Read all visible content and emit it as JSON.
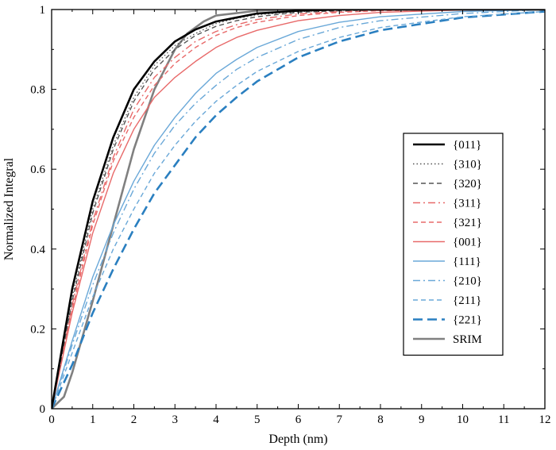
{
  "chart_data": {
    "type": "line",
    "title": "",
    "xlabel": "Depth (nm)",
    "ylabel": "Normalized Integral",
    "xlim": [
      0,
      12
    ],
    "ylim": [
      0,
      1
    ],
    "xticks": [
      "0",
      "1",
      "2",
      "3",
      "4",
      "5",
      "6",
      "7",
      "8",
      "9",
      "10",
      "11",
      "12"
    ],
    "yticks": [
      "0",
      "0.2",
      "0.4",
      "0.6",
      "0.8",
      "1"
    ],
    "grid": false,
    "legend_position": "right",
    "series": [
      {
        "name": "{011}",
        "color": "#000000",
        "dash": "solid",
        "width": "thick",
        "x": [
          0,
          0.5,
          1,
          1.5,
          2,
          2.5,
          3,
          3.5,
          4,
          4.5,
          5,
          6,
          7,
          8,
          10,
          12
        ],
        "y": [
          0,
          0.3,
          0.52,
          0.68,
          0.8,
          0.87,
          0.92,
          0.95,
          0.97,
          0.98,
          0.99,
          0.997,
          1,
          1,
          1,
          1
        ]
      },
      {
        "name": "{310}",
        "color": "#555555",
        "dash": "dotted",
        "width": "normal",
        "x": [
          0,
          0.5,
          1,
          1.5,
          2,
          2.5,
          3,
          3.5,
          4,
          4.5,
          5,
          6,
          7,
          8,
          10,
          12
        ],
        "y": [
          0,
          0.28,
          0.5,
          0.66,
          0.78,
          0.86,
          0.91,
          0.94,
          0.965,
          0.978,
          0.987,
          0.995,
          0.998,
          1,
          1,
          1
        ]
      },
      {
        "name": "{320}",
        "color": "#555555",
        "dash": "dashed",
        "width": "normal",
        "x": [
          0,
          0.5,
          1,
          1.5,
          2,
          2.5,
          3,
          3.5,
          4,
          4.5,
          5,
          6,
          7,
          8,
          10,
          12
        ],
        "y": [
          0,
          0.27,
          0.49,
          0.65,
          0.77,
          0.85,
          0.9,
          0.935,
          0.958,
          0.972,
          0.982,
          0.993,
          0.997,
          0.999,
          1,
          1
        ]
      },
      {
        "name": "{311}",
        "color": "#e86a6a",
        "dash": "dashdot",
        "width": "normal",
        "x": [
          0,
          0.5,
          1,
          1.5,
          2,
          2.5,
          3,
          3.5,
          4,
          4.5,
          5,
          6,
          7,
          8,
          10,
          12
        ],
        "y": [
          0,
          0.26,
          0.47,
          0.63,
          0.75,
          0.83,
          0.88,
          0.92,
          0.945,
          0.962,
          0.975,
          0.989,
          0.995,
          0.998,
          1,
          1
        ]
      },
      {
        "name": "{321}",
        "color": "#e86a6a",
        "dash": "dashed",
        "width": "normal",
        "x": [
          0,
          0.5,
          1,
          1.5,
          2,
          2.5,
          3,
          3.5,
          4,
          4.5,
          5,
          6,
          7,
          8,
          10,
          12
        ],
        "y": [
          0,
          0.25,
          0.46,
          0.62,
          0.73,
          0.81,
          0.865,
          0.905,
          0.935,
          0.955,
          0.968,
          0.985,
          0.993,
          0.997,
          1,
          1
        ]
      },
      {
        "name": "{001}",
        "color": "#e86a6a",
        "dash": "solid",
        "width": "normal",
        "x": [
          0,
          0.5,
          1,
          1.5,
          2,
          2.5,
          3,
          3.5,
          4,
          4.5,
          5,
          6,
          7,
          8,
          10,
          12
        ],
        "y": [
          0,
          0.24,
          0.44,
          0.59,
          0.7,
          0.78,
          0.83,
          0.87,
          0.905,
          0.93,
          0.948,
          0.972,
          0.985,
          0.993,
          0.999,
          1
        ]
      },
      {
        "name": "{111}",
        "color": "#6aa8d8",
        "dash": "solid",
        "width": "normal",
        "x": [
          0,
          0.5,
          1,
          1.5,
          2,
          2.5,
          3,
          3.5,
          4,
          4.5,
          5,
          6,
          7,
          8,
          10,
          12
        ],
        "y": [
          0,
          0.17,
          0.33,
          0.46,
          0.57,
          0.66,
          0.73,
          0.79,
          0.84,
          0.875,
          0.905,
          0.945,
          0.968,
          0.982,
          0.995,
          1
        ]
      },
      {
        "name": "{210}",
        "color": "#6aa8d8",
        "dash": "dashdot",
        "width": "normal",
        "x": [
          0,
          0.5,
          1,
          1.5,
          2,
          2.5,
          3,
          3.5,
          4,
          4.5,
          5,
          6,
          7,
          8,
          10,
          12
        ],
        "y": [
          0,
          0.16,
          0.31,
          0.44,
          0.55,
          0.64,
          0.71,
          0.765,
          0.81,
          0.85,
          0.88,
          0.925,
          0.955,
          0.972,
          0.99,
          1
        ]
      },
      {
        "name": "{211}",
        "color": "#6aa8d8",
        "dash": "dashed",
        "width": "normal",
        "x": [
          0,
          0.5,
          1,
          1.5,
          2,
          2.5,
          3,
          3.5,
          4,
          4.5,
          5,
          6,
          7,
          8,
          10,
          12
        ],
        "y": [
          0,
          0.14,
          0.28,
          0.4,
          0.5,
          0.59,
          0.66,
          0.72,
          0.77,
          0.81,
          0.845,
          0.895,
          0.93,
          0.955,
          0.982,
          0.995
        ]
      },
      {
        "name": "{221}",
        "color": "#2a7fc0",
        "dash": "longdash",
        "width": "thick",
        "x": [
          0,
          0.5,
          1,
          1.5,
          2,
          2.5,
          3,
          3.5,
          4,
          4.5,
          5,
          6,
          7,
          8,
          10,
          12
        ],
        "y": [
          0,
          0.11,
          0.24,
          0.35,
          0.45,
          0.54,
          0.61,
          0.68,
          0.735,
          0.78,
          0.82,
          0.88,
          0.92,
          0.948,
          0.98,
          0.995
        ]
      },
      {
        "name": "SRIM",
        "color": "#808080",
        "dash": "solid",
        "width": "thick",
        "x": [
          0,
          0.3,
          0.5,
          1,
          1.5,
          2,
          2.5,
          3,
          3.3,
          3.7,
          4,
          5,
          6,
          8,
          12
        ],
        "y": [
          0,
          0.03,
          0.09,
          0.27,
          0.46,
          0.65,
          0.8,
          0.9,
          0.94,
          0.97,
          0.985,
          0.997,
          1,
          1,
          1
        ]
      }
    ]
  }
}
